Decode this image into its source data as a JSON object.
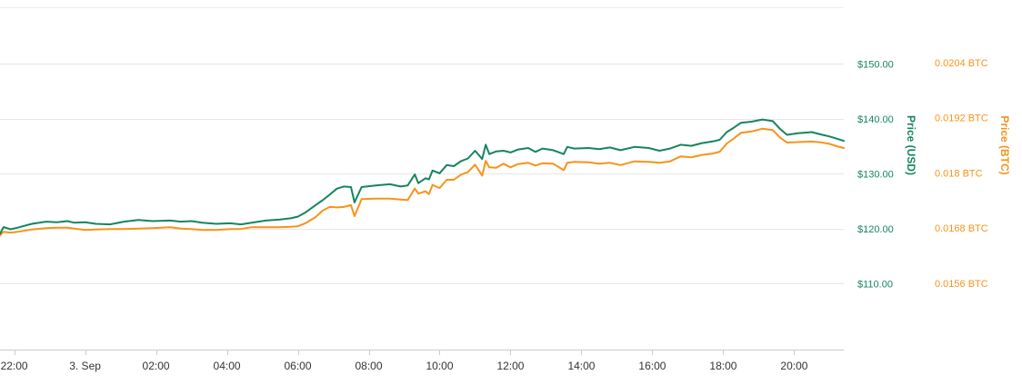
{
  "chart_data": {
    "type": "line",
    "title": "",
    "grid": true,
    "x_axis": {
      "tick_labels": [
        "22:00",
        "3. Sep",
        "02:00",
        "04:00",
        "06:00",
        "08:00",
        "10:00",
        "12:00",
        "14:00",
        "16:00",
        "18:00",
        "20:00"
      ],
      "range_hours": [
        -2.4,
        21.4
      ]
    },
    "y_axis_left": {
      "label": "Price (USD)",
      "tick_labels": [
        "$150.00",
        "$140.00",
        "$130.00",
        "$120.00",
        "$110.00"
      ],
      "ticks": [
        150,
        140,
        130,
        120,
        110
      ],
      "range": [
        98,
        160
      ]
    },
    "y_axis_right": {
      "label": "Price (BTC)",
      "tick_labels": [
        "0.0204 BTC",
        "0.0192 BTC",
        "0.018 BTC",
        "0.0168 BTC",
        "0.0156 BTC"
      ],
      "ticks": [
        0.0204,
        0.0192,
        0.018,
        0.0168,
        0.0156
      ],
      "range": [
        0.01416,
        0.02156
      ]
    },
    "series": [
      {
        "name": "Price (USD)",
        "axis": "left",
        "color": "#16855c",
        "x": [
          -2.4,
          -2.3,
          -2.1,
          -1.9,
          -1.5,
          -1.1,
          -0.8,
          -0.5,
          -0.3,
          0.0,
          0.3,
          0.7,
          1.1,
          1.5,
          1.9,
          2.4,
          2.7,
          3.0,
          3.3,
          3.7,
          4.1,
          4.4,
          4.7,
          5.1,
          5.5,
          5.8,
          6.0,
          6.2,
          6.5,
          6.7,
          6.9,
          7.1,
          7.3,
          7.5,
          7.6,
          7.8,
          8.2,
          8.6,
          8.9,
          9.1,
          9.3,
          9.4,
          9.6,
          9.7,
          9.8,
          10.0,
          10.2,
          10.4,
          10.6,
          10.8,
          11.0,
          11.2,
          11.3,
          11.4,
          11.6,
          11.8,
          12.0,
          12.2,
          12.5,
          12.7,
          12.9,
          13.2,
          13.5,
          13.6,
          13.8,
          14.2,
          14.5,
          14.8,
          15.1,
          15.5,
          15.9,
          16.2,
          16.5,
          16.8,
          17.1,
          17.4,
          17.7,
          17.9,
          18.1,
          18.3,
          18.5,
          18.8,
          19.1,
          19.4,
          19.6,
          19.8,
          20.1,
          20.5,
          20.8,
          21.0,
          21.2,
          21.4
        ],
        "values": [
          119.1,
          120.3,
          119.9,
          120.2,
          120.9,
          121.3,
          121.2,
          121.4,
          121.1,
          121.2,
          120.9,
          120.8,
          121.3,
          121.6,
          121.4,
          121.5,
          121.3,
          121.4,
          121.1,
          120.9,
          121.0,
          120.8,
          121.1,
          121.5,
          121.7,
          121.9,
          122.2,
          122.9,
          124.3,
          125.2,
          126.2,
          127.3,
          127.7,
          127.6,
          124.8,
          127.6,
          127.9,
          128.1,
          127.7,
          127.9,
          129.9,
          128.3,
          129.2,
          129.0,
          130.6,
          130.1,
          131.6,
          131.4,
          132.3,
          132.8,
          134.2,
          132.7,
          135.3,
          133.6,
          134.1,
          134.2,
          133.9,
          134.4,
          134.7,
          134.0,
          134.6,
          134.3,
          133.6,
          134.9,
          134.6,
          134.7,
          134.5,
          134.8,
          134.3,
          134.9,
          134.7,
          134.2,
          134.6,
          135.3,
          135.1,
          135.6,
          135.9,
          136.2,
          137.6,
          138.4,
          139.3,
          139.5,
          139.9,
          139.6,
          138.2,
          137.1,
          137.4,
          137.6,
          137.1,
          136.8,
          136.4,
          136.0
        ]
      },
      {
        "name": "Price (BTC)",
        "axis": "right",
        "color": "#f7931a",
        "x": [
          -2.4,
          -2.3,
          -2.1,
          -1.9,
          -1.5,
          -1.1,
          -0.8,
          -0.5,
          -0.3,
          0.0,
          0.3,
          0.7,
          1.1,
          1.5,
          1.9,
          2.4,
          2.7,
          3.0,
          3.3,
          3.7,
          4.1,
          4.4,
          4.7,
          5.1,
          5.5,
          5.8,
          6.0,
          6.2,
          6.5,
          6.7,
          6.9,
          7.1,
          7.3,
          7.5,
          7.6,
          7.8,
          8.2,
          8.6,
          8.9,
          9.1,
          9.3,
          9.4,
          9.6,
          9.7,
          9.8,
          10.0,
          10.2,
          10.4,
          10.6,
          10.8,
          11.0,
          11.2,
          11.3,
          11.4,
          11.6,
          11.8,
          12.0,
          12.2,
          12.5,
          12.7,
          12.9,
          13.2,
          13.5,
          13.6,
          13.8,
          14.2,
          14.5,
          14.8,
          15.1,
          15.5,
          15.9,
          16.2,
          16.5,
          16.8,
          17.1,
          17.4,
          17.7,
          17.9,
          18.1,
          18.3,
          18.5,
          18.8,
          19.1,
          19.4,
          19.6,
          19.8,
          20.1,
          20.5,
          20.8,
          21.0,
          21.2,
          21.4
        ],
        "values": [
          0.01664,
          0.01672,
          0.0167,
          0.01672,
          0.01677,
          0.0168,
          0.01681,
          0.01681,
          0.01679,
          0.01676,
          0.01677,
          0.01678,
          0.01678,
          0.01679,
          0.0168,
          0.01682,
          0.01679,
          0.01678,
          0.01676,
          0.01676,
          0.01678,
          0.01678,
          0.01682,
          0.01682,
          0.01682,
          0.01683,
          0.01684,
          0.0169,
          0.01704,
          0.01718,
          0.01726,
          0.01725,
          0.01726,
          0.0173,
          0.01706,
          0.01743,
          0.01744,
          0.01744,
          0.01742,
          0.01741,
          0.01766,
          0.01755,
          0.0176,
          0.01754,
          0.01774,
          0.01767,
          0.01785,
          0.01785,
          0.01796,
          0.01802,
          0.01818,
          0.01794,
          0.01826,
          0.01812,
          0.01811,
          0.0182,
          0.01812,
          0.01819,
          0.01822,
          0.01816,
          0.01821,
          0.0182,
          0.01806,
          0.01822,
          0.01824,
          0.01823,
          0.0182,
          0.01822,
          0.01817,
          0.01825,
          0.01824,
          0.01822,
          0.01825,
          0.01836,
          0.01834,
          0.01839,
          0.01842,
          0.01846,
          0.01864,
          0.01875,
          0.01887,
          0.0189,
          0.01896,
          0.01893,
          0.01877,
          0.01866,
          0.01867,
          0.01868,
          0.01866,
          0.01863,
          0.01858,
          0.01854
        ]
      }
    ]
  }
}
